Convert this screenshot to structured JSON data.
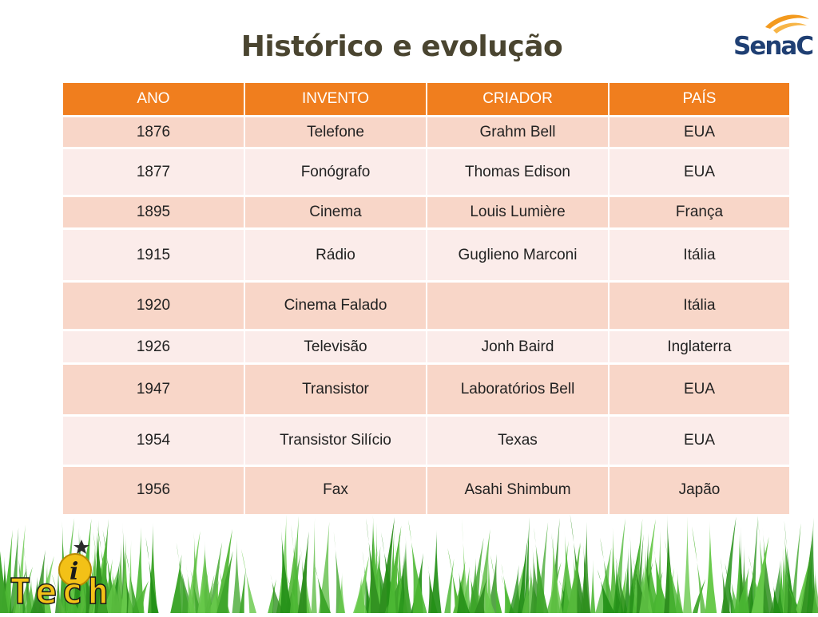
{
  "title": "Histórico e evolução",
  "logo": {
    "text": "SenaC"
  },
  "brand": {
    "text": "Tech"
  },
  "colors": {
    "header": "#f07e1e",
    "row_odd": "#f8d6c8",
    "row_even": "#fbecea",
    "title": "#4a4530",
    "logo": "#1f3f73"
  },
  "table": {
    "headers": [
      "ANO",
      "INVENTO",
      "CRIADOR",
      "PAÍS"
    ],
    "rows": [
      [
        "1876",
        "Telefone",
        "Grahm Bell",
        "EUA"
      ],
      [
        "1877",
        "Fonógrafo",
        "Thomas Edison",
        "EUA"
      ],
      [
        "1895",
        "Cinema",
        "Louis Lumière",
        "França"
      ],
      [
        "1915",
        "Rádio",
        "Guglieno Marconi",
        "Itália"
      ],
      [
        "1920",
        "Cinema Falado",
        "",
        "Itália"
      ],
      [
        "1926",
        "Televisão",
        "Jonh Baird",
        "Inglaterra"
      ],
      [
        "1947",
        "Transistor",
        "Laboratórios Bell",
        "EUA"
      ],
      [
        "1954",
        "Transistor Silício",
        "Texas",
        "EUA"
      ],
      [
        "1956",
        "Fax",
        "Asahi Shimbum",
        "Japão"
      ]
    ]
  }
}
